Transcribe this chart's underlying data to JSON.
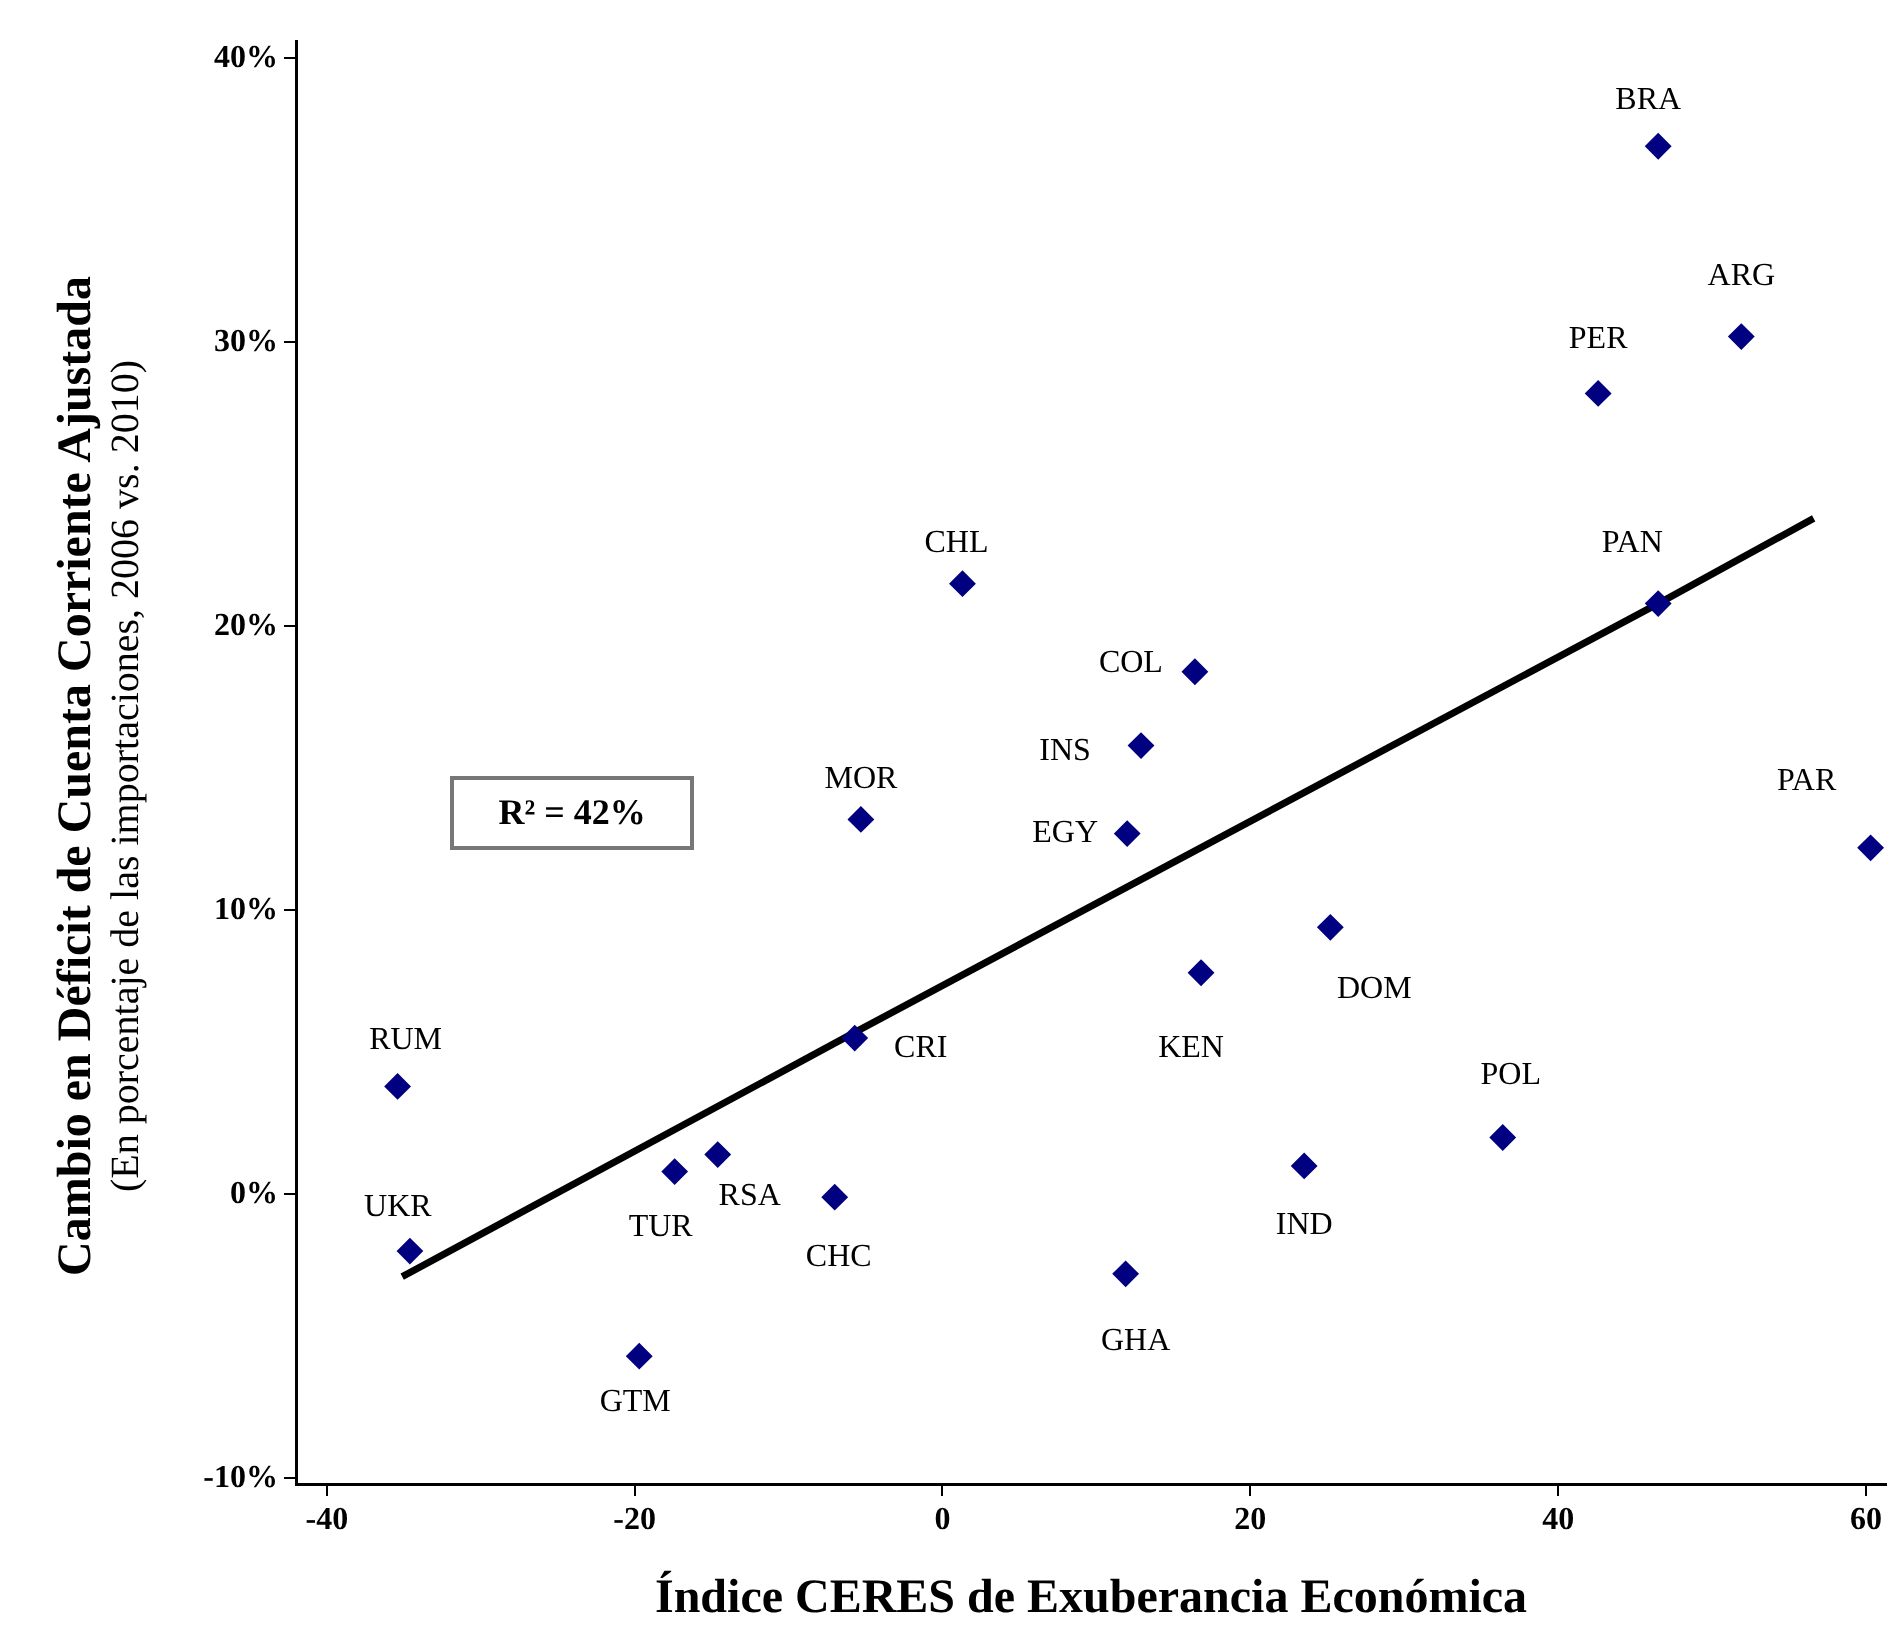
{
  "chart_data": {
    "type": "scatter",
    "xlabel": "Índice CERES de Exuberancia Económica",
    "ylabel": "Cambio en Déficit de Cuenta Corriente Ajustada\n(En porcentaje de las importaciones, 2006 vs. 2010)",
    "xlim": [
      -42,
      61.3
    ],
    "xticks": [
      -40,
      -20,
      0,
      20,
      40,
      60
    ],
    "ylim": [
      -10.2,
      40.6
    ],
    "yticks": [
      {
        "value": -10,
        "label": "-10%"
      },
      {
        "value": 0,
        "label": "0%"
      },
      {
        "value": 10,
        "label": "10%"
      },
      {
        "value": 20,
        "label": "20%"
      },
      {
        "value": 30,
        "label": "30%"
      },
      {
        "value": 40,
        "label": "40%"
      }
    ],
    "grid": false,
    "legend": false,
    "marker": "diamond",
    "series": [
      {
        "type": "scatter",
        "color": "#000080",
        "x": [
          46.5,
          51.9,
          42.6,
          46.5,
          60.3,
          1.3,
          16.4,
          12.9,
          12.0,
          -5.3,
          25.2,
          16.8,
          -5.7,
          -35.4,
          36.4,
          23.5,
          -17.4,
          -14.6,
          -7.0,
          -34.6,
          11.9,
          -19.7
        ],
        "values": [
          36.9,
          30.2,
          28.2,
          20.8,
          12.2,
          21.5,
          18.4,
          15.8,
          12.7,
          13.2,
          9.4,
          7.8,
          5.5,
          3.8,
          2.0,
          1.0,
          0.8,
          1.4,
          -0.1,
          -2.0,
          -2.8,
          -5.7
        ]
      },
      {
        "type": "line",
        "color": "#000000",
        "marker": "none",
        "line_style": "solid",
        "x": [
          -35.1,
          -5.7,
          46.5,
          56.6
        ],
        "values": [
          -2.9,
          5.7,
          20.8,
          23.8
        ]
      }
    ],
    "annotations": [
      "R² = 42%",
      {
        "text": "BRA",
        "x": 46.5,
        "y": 36.9
      },
      {
        "text": "ARG",
        "x": 51.9,
        "y": 30.2
      },
      {
        "text": "PER",
        "x": 42.6,
        "y": 28.2
      },
      {
        "text": "PAN",
        "x": 46.5,
        "y": 20.8
      },
      {
        "text": "PAR",
        "x": 60.3,
        "y": 12.2
      },
      {
        "text": "CHL",
        "x": 1.3,
        "y": 21.5
      },
      {
        "text": "COL",
        "x": 16.4,
        "y": 18.4
      },
      {
        "text": "INS",
        "x": 12.9,
        "y": 15.8
      },
      {
        "text": "EGY",
        "x": 12.0,
        "y": 12.7
      },
      {
        "text": "MOR",
        "x": -5.3,
        "y": 13.2
      },
      {
        "text": "DOM",
        "x": 25.2,
        "y": 9.4
      },
      {
        "text": "KEN",
        "x": 16.8,
        "y": 7.8
      },
      {
        "text": "CRI",
        "x": -5.7,
        "y": 5.5
      },
      {
        "text": "RUM",
        "x": -35.4,
        "y": 3.8
      },
      {
        "text": "POL",
        "x": 36.4,
        "y": 2.0
      },
      {
        "text": "IND",
        "x": 23.5,
        "y": 1.0
      },
      {
        "text": "TUR",
        "x": -17.4,
        "y": 0.8
      },
      {
        "text": "RSA",
        "x": -14.6,
        "y": 1.4
      },
      {
        "text": "CHC",
        "x": -7.0,
        "y": -0.1
      },
      {
        "text": "UKR",
        "x": -34.6,
        "y": -2.0
      },
      {
        "text": "GHA",
        "x": 11.9,
        "y": -2.8
      },
      {
        "text": "GTM",
        "x": -19.7,
        "y": -5.7
      }
    ]
  }
}
